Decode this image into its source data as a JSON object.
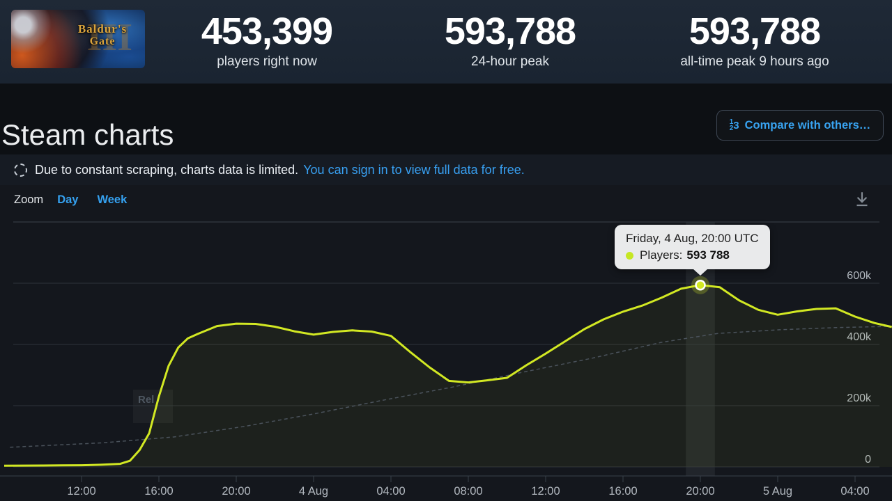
{
  "header": {
    "capsule": {
      "title_line1": "Baldur's",
      "title_line2": "Gate",
      "numeral": "III"
    },
    "stats": [
      {
        "value": "453,399",
        "label": "players right now"
      },
      {
        "value": "593,788",
        "label": "24-hour peak"
      },
      {
        "value": "593,788",
        "label": "all-time peak 9 hours ago"
      }
    ]
  },
  "charts_section": {
    "title": "Steam charts",
    "compare_button": {
      "icon": "compare-123-icon",
      "digit1": "1",
      "digit2": "2",
      "digit3": "3",
      "label": "Compare with others…"
    },
    "notice": {
      "icon": "limited-data-dashed-circle-icon",
      "text": "Due to constant scraping, charts data is limited.",
      "link": "You can sign in to view full data for free."
    },
    "controls": {
      "zoom_label": "Zoom",
      "options": [
        {
          "label": "Day"
        },
        {
          "label": "Week"
        }
      ],
      "download_icon": "download-icon"
    }
  },
  "release_flag": {
    "label": "Rel"
  },
  "tooltip": {
    "title": "Friday, 4 Aug, 20:00 UTC",
    "series_label": "Players:",
    "value": "593 788"
  },
  "colors": {
    "accent_blue": "#38a3f1",
    "players_line": "#d2e823",
    "tooltip_dot": "#c6e723",
    "grid_line": "#2e333a",
    "axis_text": "#b2b8bf"
  },
  "chart_data": {
    "type": "line",
    "title": "",
    "legend": "off",
    "grid": "horizontal",
    "x_axis": {
      "unit": "time UTC",
      "start": "3 Aug 08:00",
      "end": "5 Aug ~06:00",
      "tick_interval_hours": 4,
      "ticks": [
        {
          "label": "12:00",
          "h": 4
        },
        {
          "label": "16:00",
          "h": 8
        },
        {
          "label": "20:00",
          "h": 12
        },
        {
          "label": "4 Aug",
          "h": 16
        },
        {
          "label": "04:00",
          "h": 20
        },
        {
          "label": "08:00",
          "h": 24
        },
        {
          "label": "12:00",
          "h": 28
        },
        {
          "label": "16:00",
          "h": 32
        },
        {
          "label": "20:00",
          "h": 36
        },
        {
          "label": "5 Aug",
          "h": 40
        },
        {
          "label": "04:00",
          "h": 44
        }
      ]
    },
    "y_axis": {
      "label_side": "right",
      "top_gridline_value": 800000,
      "ticks": [
        {
          "label": "600k",
          "v": 600000
        },
        {
          "label": "400k",
          "v": 400000
        },
        {
          "label": "200k",
          "v": 200000
        },
        {
          "label": "0",
          "v": 0
        }
      ]
    },
    "series": [
      {
        "name": "Players",
        "color": "#d2e823",
        "style": "solid",
        "points": [
          [
            0,
            4000
          ],
          [
            1,
            4300
          ],
          [
            2,
            4600
          ],
          [
            3,
            5000
          ],
          [
            4,
            5500
          ],
          [
            5,
            7000
          ],
          [
            6,
            10000
          ],
          [
            6.5,
            20000
          ],
          [
            7,
            55000
          ],
          [
            7.5,
            110000
          ],
          [
            8,
            230000
          ],
          [
            8.5,
            330000
          ],
          [
            9,
            390000
          ],
          [
            9.5,
            420000
          ],
          [
            10,
            434000
          ],
          [
            11,
            460000
          ],
          [
            12,
            468000
          ],
          [
            13,
            467000
          ],
          [
            14,
            458000
          ],
          [
            15,
            443000
          ],
          [
            16,
            432000
          ],
          [
            17,
            441000
          ],
          [
            18,
            446000
          ],
          [
            19,
            442000
          ],
          [
            20,
            428000
          ],
          [
            21,
            375000
          ],
          [
            22,
            325000
          ],
          [
            23,
            281000
          ],
          [
            24,
            276000
          ],
          [
            25,
            283000
          ],
          [
            26,
            291000
          ],
          [
            27,
            332000
          ],
          [
            28,
            370000
          ],
          [
            29,
            410000
          ],
          [
            30,
            450000
          ],
          [
            31,
            482000
          ],
          [
            32,
            507000
          ],
          [
            33,
            527000
          ],
          [
            34,
            553000
          ],
          [
            35,
            582000
          ],
          [
            36,
            593788
          ],
          [
            37,
            587000
          ],
          [
            38,
            544000
          ],
          [
            39,
            513000
          ],
          [
            40,
            497000
          ],
          [
            41,
            508000
          ],
          [
            42,
            516000
          ],
          [
            43,
            518000
          ],
          [
            44,
            491000
          ],
          [
            45,
            470000
          ],
          [
            45.9,
            457000
          ]
        ]
      },
      {
        "name": "trend-unlabeled-dashed",
        "color": "#4a525b",
        "style": "dashed",
        "points": [
          [
            0.3,
            64000
          ],
          [
            5.2,
            79000
          ],
          [
            8.8,
            98000
          ],
          [
            12.4,
            132000
          ],
          [
            16,
            173000
          ],
          [
            19.6,
            218000
          ],
          [
            23.2,
            261000
          ],
          [
            26.8,
            309000
          ],
          [
            30.4,
            355000
          ],
          [
            34,
            407000
          ],
          [
            36.9,
            436000
          ],
          [
            40.1,
            448000
          ],
          [
            43,
            455000
          ],
          [
            45.9,
            459000
          ]
        ]
      }
    ],
    "hover_marker": {
      "series": "Players",
      "h": 36,
      "value": 593788
    },
    "hover_band": {
      "center_h": 36,
      "width_hours": 1.5
    }
  }
}
